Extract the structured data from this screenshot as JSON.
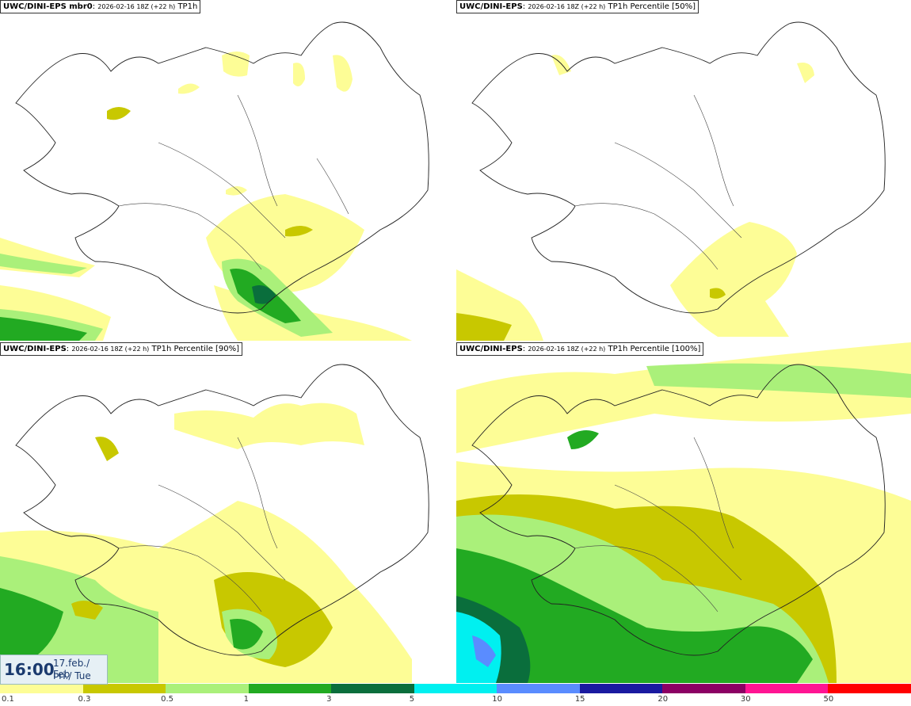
{
  "panels": [
    {
      "model": "UWC/DINI-EPS mbr0",
      "run": "2026-02-16 18Z (+22 h)",
      "field": "TP1h"
    },
    {
      "model": "UWC/DINI-EPS",
      "run": "2026-02-16 18Z (+22 h)",
      "field": "TP1h Percentile [50%]"
    },
    {
      "model": "UWC/DINI-EPS",
      "run": "2026-02-16 18Z (+22 h)",
      "field": "TP1h Percentile [90%]"
    },
    {
      "model": "UWC/DINI-EPS",
      "run": "2026-02-16 18Z (+22 h)",
      "field": "TP1h Percentile [100%]"
    }
  ],
  "valid_time": {
    "time": "16:00",
    "date_line1": "17.feb./ Feb",
    "date_line2": "Þri./ Tue"
  },
  "colorbar": {
    "colors": [
      "#fdfd96",
      "#c8c800",
      "#aaf07a",
      "#22aa22",
      "#0a6e3c",
      "#00f0f0",
      "#5a8cff",
      "#1a1aa0",
      "#8c0064",
      "#ff1493",
      "#ff0000"
    ],
    "labels": [
      "0.1",
      "0.3",
      "0.5",
      "1",
      "3",
      "5",
      "10",
      "15",
      "20",
      "30",
      "50"
    ]
  }
}
